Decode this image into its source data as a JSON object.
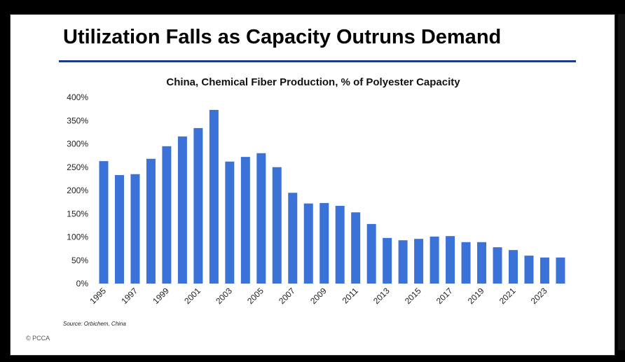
{
  "chart_data": {
    "type": "bar",
    "title": "Utilization Falls as Capacity Outruns Demand",
    "subtitle": "China, Chemical Fiber Production, % of Polyester Capacity",
    "xlabel": "",
    "ylabel": "",
    "categories": [
      "1995",
      "1996",
      "1997",
      "1998",
      "1999",
      "2000",
      "2001",
      "2002",
      "2003",
      "2004",
      "2005",
      "2006",
      "2007",
      "2008",
      "2009",
      "2010",
      "2011",
      "2012",
      "2013",
      "2014",
      "2015",
      "2016",
      "2017",
      "2018",
      "2019",
      "2020",
      "2021",
      "2022",
      "2023",
      "2024"
    ],
    "values": [
      263,
      233,
      235,
      268,
      295,
      316,
      334,
      373,
      262,
      272,
      280,
      250,
      195,
      172,
      173,
      167,
      153,
      128,
      98,
      93,
      96,
      101,
      102,
      89,
      89,
      78,
      72,
      60,
      56,
      56
    ],
    "unit": "%",
    "ylim": [
      0,
      400
    ],
    "yticks": [
      "0%",
      "50%",
      "100%",
      "150%",
      "200%",
      "250%",
      "300%",
      "350%",
      "400%"
    ],
    "xtick_labels": [
      "1995",
      "1997",
      "1999",
      "2001",
      "2003",
      "2005",
      "2007",
      "2009",
      "2011",
      "2013",
      "2015",
      "2017",
      "2019",
      "2021",
      "2023"
    ],
    "grid": false,
    "legend": "none",
    "bar_color": "#3a72d8",
    "source": "Source: Orbichem, China",
    "copyright": "© PCCA"
  }
}
